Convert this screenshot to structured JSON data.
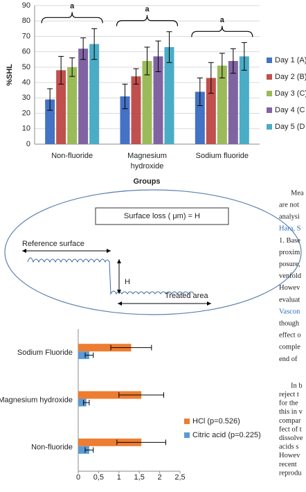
{
  "chart_data": [
    {
      "type": "bar",
      "y_label": "%SHL",
      "x_label": "Groups",
      "categories": [
        "Non-fluoride",
        "Magnesium hydroxide",
        "Sodium fluoride"
      ],
      "category_lines": [
        [
          "Non-fluoride"
        ],
        [
          "Magnesium",
          "hydroxide"
        ],
        [
          "Sodium fluoride"
        ]
      ],
      "annotations": [
        "a",
        "a",
        "a"
      ],
      "series": [
        {
          "name": "Day 1 (A)",
          "color": "#4472c4",
          "values": [
            29,
            31,
            34
          ],
          "errors": [
            7,
            8,
            9
          ]
        },
        {
          "name": "Day 2 (B)",
          "color": "#c0504d",
          "values": [
            48,
            44,
            43
          ],
          "errors": [
            9,
            5,
            10
          ]
        },
        {
          "name": "Day 3 (C)",
          "color": "#9bbb59",
          "values": [
            50,
            54,
            51
          ],
          "errors": [
            6,
            9,
            8
          ]
        },
        {
          "name": "Day 4 (C",
          "color": "#8064a2",
          "values": [
            62,
            57,
            54
          ],
          "errors": [
            7,
            10,
            8
          ]
        },
        {
          "name": "Day 5 (D",
          "color": "#4bacc6",
          "values": [
            65,
            63,
            57
          ],
          "errors": [
            10,
            10,
            9
          ]
        }
      ],
      "ylim": [
        0,
        90
      ],
      "yticks": [
        0,
        10,
        20,
        30,
        40,
        50,
        60,
        70,
        80,
        90
      ],
      "grid": true
    },
    {
      "type": "hbar",
      "categories": [
        "Sodium Fluoride",
        "Magnesium hydroxide",
        "Non-fluoride"
      ],
      "series": [
        {
          "name": "HCl (p=0.526)",
          "color": "#ed7d31",
          "values": [
            1.3,
            1.55,
            1.55
          ],
          "errors": [
            0.5,
            0.55,
            0.6
          ]
        },
        {
          "name": "Citric acid (p=0.225)",
          "color": "#5b9bd5",
          "values": [
            0.27,
            0.2,
            0.27
          ],
          "errors": [
            0.1,
            0.07,
            0.1
          ]
        }
      ],
      "xlim": [
        0,
        2.5
      ],
      "xticks": [
        0,
        {
          "value": 0.5,
          "label": "0,5"
        },
        1,
        {
          "value": 1.5,
          "label": "1,5"
        },
        2,
        {
          "value": 2.5,
          "label": "2,5"
        }
      ]
    }
  ],
  "diagram": {
    "box": "Surface loss ( μm) = H",
    "reference": "Reference surface",
    "height": "H",
    "treated": "Treated area"
  },
  "text": {
    "lines": [
      "Mea",
      "are not",
      "analysi",
      "Hara, S",
      "1. Base",
      "proxim",
      "posure,",
      "venfold",
      "Howev",
      "evaluat",
      "Vascon",
      "though",
      "effect o",
      "comple",
      "end of",
      "In b",
      "reject t",
      "for the",
      "this in v",
      "compar",
      "fect of t",
      "dissolve",
      "acids s",
      "Howev",
      "recent",
      "reprodu"
    ]
  }
}
